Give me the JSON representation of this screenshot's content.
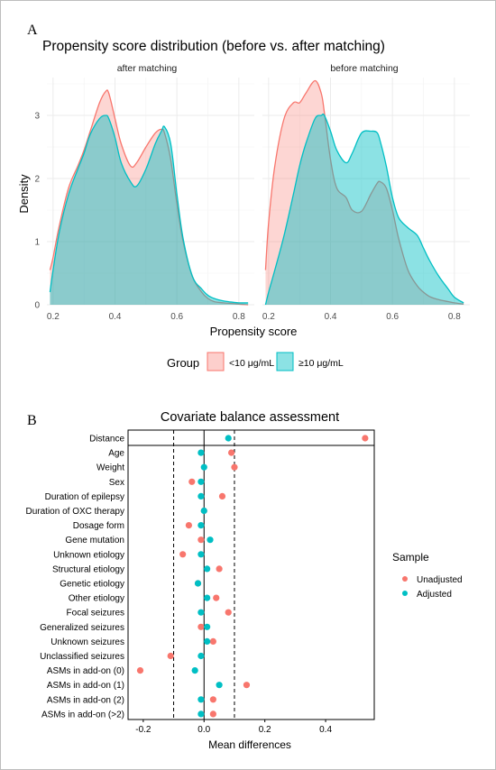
{
  "panels": [
    {
      "letter": "A",
      "title": "Propensity score distribution (before vs. after matching)",
      "facets": [
        "after matching",
        "before matching"
      ],
      "xlabel": "Propensity score",
      "ylabel": "Density",
      "legend": {
        "title": "Group",
        "items": [
          "<10 μg/mL",
          "≥10 μg/mL"
        ]
      }
    },
    {
      "letter": "B",
      "title": "Covariate balance assessment",
      "xlabel": "Mean differences",
      "legend": {
        "title": "Sample",
        "items": [
          "Unadjusted",
          "Adjusted"
        ]
      }
    }
  ],
  "colors": {
    "low": "#F8766D",
    "high": "#00BFC4"
  },
  "chart_data": [
    {
      "type": "area",
      "title": "Propensity score distribution (before vs. after matching)",
      "xlabel": "Propensity score",
      "ylabel": "Density",
      "xlim": [
        0.18,
        0.85
      ],
      "ylim": [
        0,
        3.6
      ],
      "xticks": [
        0.2,
        0.4,
        0.6,
        0.8
      ],
      "yticks": [
        0,
        1,
        2,
        3
      ],
      "grid": true,
      "legend_position": "bottom",
      "x": [
        0.19,
        0.2,
        0.22,
        0.25,
        0.28,
        0.3,
        0.32,
        0.35,
        0.37,
        0.38,
        0.4,
        0.42,
        0.45,
        0.47,
        0.5,
        0.53,
        0.55,
        0.56,
        0.58,
        0.6,
        0.62,
        0.65,
        0.68,
        0.7,
        0.72,
        0.75,
        0.78,
        0.8,
        0.83
      ],
      "facets": [
        {
          "name": "after matching",
          "series": [
            {
              "name": "<10 μg/mL",
              "values": [
                0.55,
                0.75,
                1.25,
                1.85,
                2.2,
                2.45,
                2.75,
                3.2,
                3.38,
                3.35,
                2.95,
                2.55,
                2.2,
                2.25,
                2.5,
                2.72,
                2.78,
                2.72,
                2.3,
                1.6,
                1.0,
                0.45,
                0.2,
                0.1,
                0.05,
                0.03,
                0.02,
                0.01,
                0.0
              ]
            },
            {
              "name": "≥10 μg/mL",
              "values": [
                0.2,
                0.55,
                1.15,
                1.75,
                2.15,
                2.4,
                2.7,
                2.95,
                3.0,
                2.95,
                2.65,
                2.25,
                1.95,
                1.88,
                2.15,
                2.55,
                2.75,
                2.82,
                2.55,
                1.75,
                1.05,
                0.45,
                0.25,
                0.15,
                0.1,
                0.06,
                0.04,
                0.03,
                0.03
              ]
            }
          ]
        },
        {
          "name": "before matching",
          "series": [
            {
              "name": "<10 μg/mL",
              "values": [
                0.55,
                1.3,
                2.2,
                2.95,
                3.2,
                3.2,
                3.35,
                3.55,
                3.35,
                3.05,
                2.3,
                1.85,
                1.7,
                1.5,
                1.48,
                1.75,
                1.92,
                1.95,
                1.85,
                1.5,
                1.05,
                0.55,
                0.3,
                0.2,
                0.13,
                0.08,
                0.05,
                0.03,
                0.01
              ]
            },
            {
              "name": "≥10 μg/mL",
              "values": [
                0.0,
                0.2,
                0.55,
                1.1,
                1.75,
                2.2,
                2.55,
                2.95,
                3.0,
                3.0,
                2.75,
                2.45,
                2.25,
                2.4,
                2.72,
                2.75,
                2.73,
                2.6,
                2.2,
                1.7,
                1.38,
                1.22,
                1.1,
                0.9,
                0.7,
                0.45,
                0.25,
                0.12,
                0.03
              ]
            }
          ]
        }
      ]
    },
    {
      "type": "scatter",
      "title": "Covariate balance assessment",
      "xlabel": "Mean differences",
      "xlim": [
        -0.25,
        0.56
      ],
      "xticks": [
        -0.2,
        0.0,
        0.2,
        0.4
      ],
      "threshold_lines": [
        -0.1,
        0.1
      ],
      "zero_line": 0,
      "grid": false,
      "legend_position": "right",
      "categories": [
        "Distance",
        "Age",
        "Weight",
        "Sex",
        "Duration of epilepsy",
        "Duration of OXC therapy",
        "Dosage form",
        "Gene mutation",
        "Unknown etiology",
        "Structural etiology",
        "Genetic etiology",
        "Other etiology",
        "Focal seizures",
        "Generalized seizures",
        "Unknown seizures",
        "Unclassified seizures",
        "ASMs in add-on (0)",
        "ASMs in add-on (1)",
        "ASMs in add-on (2)",
        "ASMs in add-on (>2)"
      ],
      "series": [
        {
          "name": "Unadjusted",
          "values": [
            0.53,
            0.09,
            0.1,
            -0.04,
            0.06,
            0.0,
            -0.05,
            -0.01,
            -0.07,
            0.05,
            -0.02,
            0.04,
            0.08,
            -0.01,
            0.03,
            -0.11,
            -0.21,
            0.14,
            0.03,
            0.03
          ]
        },
        {
          "name": "Adjusted",
          "values": [
            0.08,
            -0.01,
            0.0,
            -0.01,
            -0.01,
            0.0,
            -0.01,
            0.02,
            -0.01,
            0.01,
            -0.02,
            0.01,
            -0.01,
            0.01,
            0.01,
            -0.01,
            -0.03,
            0.05,
            -0.01,
            -0.01
          ]
        }
      ]
    }
  ]
}
